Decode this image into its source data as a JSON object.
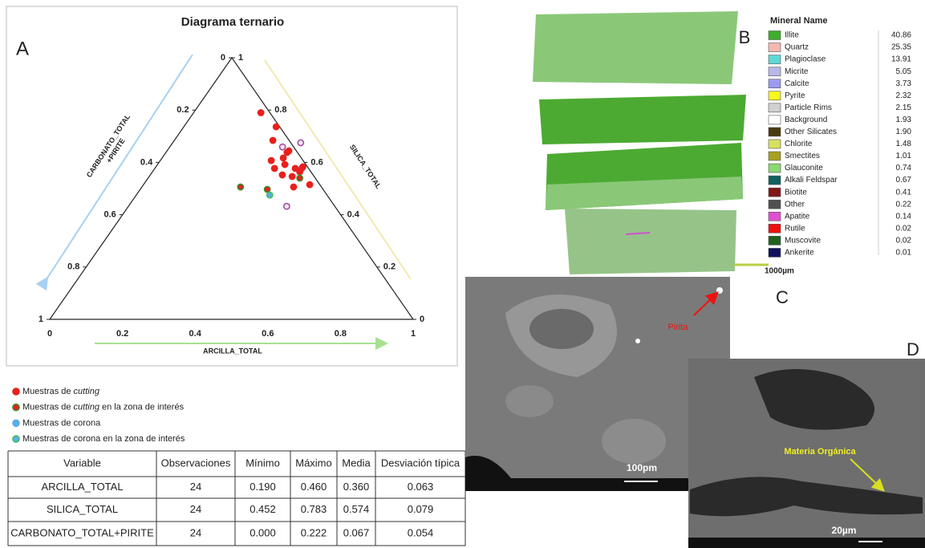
{
  "figure": {
    "ternary": {
      "panel_label": "A",
      "title": "Diagrama ternario",
      "left_axis": [
        "CARBONATO_TOTAL",
        "+PIRITE"
      ],
      "right_axis": "SILICA_TOTAL",
      "bottom_axis": "ARCILLA_TOTAL",
      "bottom_ticks": [
        0,
        0.2,
        0.4,
        0.6,
        0.8,
        1
      ],
      "left_ticks": [
        0,
        0.2,
        0.4,
        0.6,
        0.8,
        1
      ],
      "right_ticks": [
        0,
        0.2,
        0.4,
        0.6,
        0.8,
        1
      ],
      "series": [
        {
          "name": [
            "Muestras de",
            "cutting"
          ],
          "color": "#e8201c",
          "ring": "#e8201c",
          "points": [
            [
              0.186,
              0.79
            ],
            [
              0.255,
              0.736
            ],
            [
              0.272,
              0.684
            ],
            [
              0.336,
              0.644
            ],
            [
              0.334,
              0.617
            ],
            [
              0.306,
              0.607
            ],
            [
              0.33,
              0.577
            ],
            [
              0.351,
              0.592
            ],
            [
              0.387,
              0.577
            ],
            [
              0.406,
              0.564
            ],
            [
              0.405,
              0.583
            ],
            [
              0.364,
              0.552
            ],
            [
              0.394,
              0.546
            ],
            [
              0.458,
              0.515
            ],
            [
              0.418,
              0.506
            ],
            [
              0.334,
              0.638
            ]
          ]
        },
        {
          "name": [
            "Muestras de",
            "cutting",
            "en la zona de interés"
          ],
          "color": "#e8201c",
          "ring": "#3a8a2a",
          "points": [
            [
              0.272,
              0.506
            ],
            [
              0.35,
              0.497
            ],
            [
              0.418,
              0.54
            ]
          ]
        },
        {
          "name": [
            "Muestras de corona"
          ],
          "color": "#5aaee8",
          "ring": "#5aaee8",
          "points": []
        },
        {
          "name": [
            "Muestras de corona en la zona de interés"
          ],
          "color": "#5aaee8",
          "ring": "#3fbf5a",
          "points": [
            [
              0.368,
              0.475
            ]
          ]
        }
      ],
      "other_points": {
        "color": "#f3e6f3",
        "ring": "#a050a0",
        "points": [
          [
            0.311,
            0.659
          ],
          [
            0.353,
            0.675
          ],
          [
            0.405,
            0.577
          ],
          [
            0.436,
            0.432
          ]
        ]
      }
    },
    "table": {
      "header": [
        "Variable",
        "Observaciones",
        "Mínimo",
        "Máximo",
        "Media",
        "Desviación típica"
      ],
      "rows": [
        [
          "ARCILLA_TOTAL",
          "24",
          "0.190",
          "0.460",
          "0.360",
          "0.063"
        ],
        [
          "SILICA_TOTAL",
          "24",
          "0.452",
          "0.783",
          "0.574",
          "0.079"
        ],
        [
          "CARBONATO_TOTAL+PIRITE",
          "24",
          "0.000",
          "0.222",
          "0.067",
          "0.054"
        ]
      ]
    },
    "mineral_map": {
      "panel_label": "B",
      "title": "Mineral Name",
      "scale": "1000µm",
      "minerals": [
        {
          "name": "Illite",
          "color": "#3fae2a",
          "value": "40.86"
        },
        {
          "name": "Quartz",
          "color": "#f4b8b0",
          "value": "25.35"
        },
        {
          "name": "Plagioclase",
          "color": "#5fd8d8",
          "value": "13.91"
        },
        {
          "name": "Micrite",
          "color": "#b8b8e8",
          "value": "5.05"
        },
        {
          "name": "Calcite",
          "color": "#9a9af0",
          "value": "3.73"
        },
        {
          "name": "Pyrite",
          "color": "#f8f820",
          "value": "2.32"
        },
        {
          "name": "Particle Rims",
          "color": "#d0d0d0",
          "value": "2.15"
        },
        {
          "name": "Background",
          "color": "#ffffff",
          "value": "1.93"
        },
        {
          "name": "Other Silicates",
          "color": "#4a3a10",
          "value": "1.90"
        },
        {
          "name": "Chlorite",
          "color": "#d8e060",
          "value": "1.48"
        },
        {
          "name": "Smectites",
          "color": "#a8a020",
          "value": "1.01"
        },
        {
          "name": "Glauconite",
          "color": "#8ad870",
          "value": "0.74"
        },
        {
          "name": "Alkali Feldspar",
          "color": "#106060",
          "value": "0.67"
        },
        {
          "name": "Biotite",
          "color": "#801818",
          "value": "0.41"
        },
        {
          "name": "Other",
          "color": "#505050",
          "value": "0.22"
        },
        {
          "name": "Apatite",
          "color": "#e050d0",
          "value": "0.14"
        },
        {
          "name": "Rutile",
          "color": "#f01010",
          "value": "0.02"
        },
        {
          "name": "Muscovite",
          "color": "#206020",
          "value": "0.02"
        },
        {
          "name": "Ankerite",
          "color": "#101060",
          "value": "0.01"
        }
      ]
    },
    "sem_c": {
      "panel_label": "C",
      "annotation": "Pirita",
      "scale": "100pm"
    },
    "sem_d": {
      "panel_label": "D",
      "annotation": "Materia Orgánica",
      "scale": "20µm"
    }
  }
}
